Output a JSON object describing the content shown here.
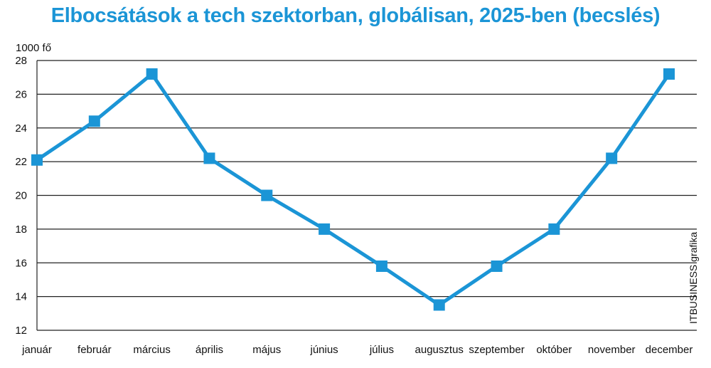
{
  "chart_data": {
    "type": "line",
    "title": "Elbocsátások a tech szektorban, globálisan, 2025-ben (becslés)",
    "y_unit_label": "1000 fő",
    "credit": "ITBUSINESS grafika",
    "categories": [
      "január",
      "február",
      "március",
      "április",
      "május",
      "június",
      "július",
      "augusztus",
      "szeptember",
      "október",
      "november",
      "december"
    ],
    "series": [
      {
        "values": [
          22.1,
          24.4,
          27.2,
          22.2,
          20.0,
          18.0,
          15.8,
          13.5,
          15.8,
          18.0,
          22.2,
          27.2
        ]
      }
    ],
    "ylim": [
      12,
      28
    ],
    "yticks": [
      12,
      14,
      16,
      18,
      20,
      22,
      24,
      26,
      28
    ],
    "grid": true,
    "legend": "none",
    "colors": {
      "line": "#1b95d6",
      "title": "#1b95d6",
      "grid": "#222222"
    }
  }
}
